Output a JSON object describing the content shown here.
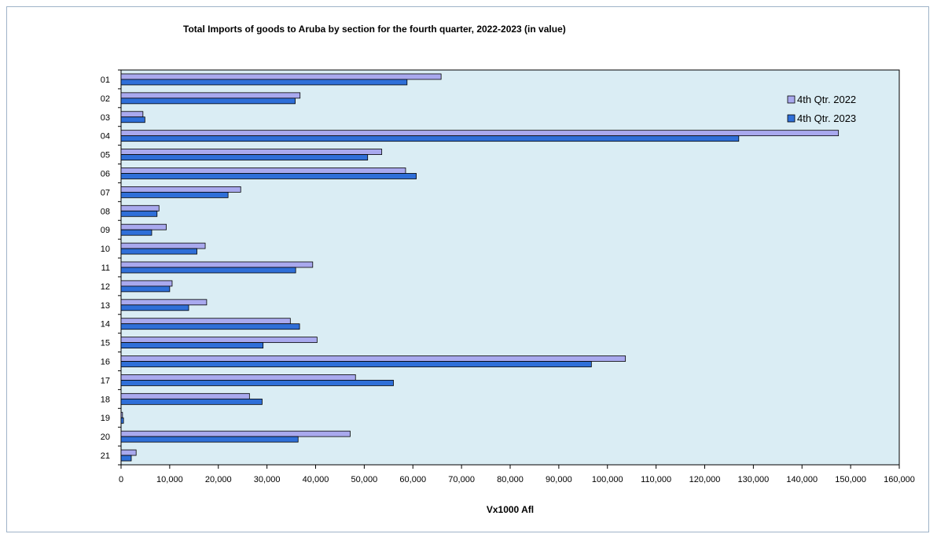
{
  "chart_data": {
    "type": "bar",
    "orientation": "horizontal",
    "title": "Total Imports of goods to Aruba by section for the fourth quarter, 2022-2023 (in value)",
    "xlabel": "Vx1000 Afl",
    "ylabel": "",
    "xlim": [
      0,
      160000
    ],
    "x_ticks": [
      "0",
      "10,000",
      "20,000",
      "30,000",
      "40,000",
      "50,000",
      "60,000",
      "70,000",
      "80,000",
      "90,000",
      "100,000",
      "110,000",
      "120,000",
      "130,000",
      "140,000",
      "150,000",
      "160,000"
    ],
    "categories": [
      "01",
      "02",
      "03",
      "04",
      "05",
      "06",
      "07",
      "08",
      "09",
      "10",
      "11",
      "12",
      "13",
      "14",
      "15",
      "16",
      "17",
      "18",
      "19",
      "20",
      "21"
    ],
    "series": [
      {
        "name": "4th Qtr. 2022",
        "color": "#a9a9ee",
        "values": [
          65800,
          36800,
          4500,
          147500,
          53600,
          58500,
          24600,
          7800,
          9300,
          17300,
          39400,
          10500,
          17600,
          34800,
          40300,
          103700,
          48200,
          26400,
          300,
          47100,
          3100
        ]
      },
      {
        "name": "4th Qtr. 2023",
        "color": "#2f6fd8",
        "values": [
          58800,
          35800,
          4900,
          127000,
          50700,
          60700,
          22000,
          7400,
          6300,
          15600,
          35900,
          10000,
          13900,
          36700,
          29200,
          96700,
          56000,
          29000,
          500,
          36400,
          2100
        ]
      }
    ],
    "grid": false,
    "plot_background": "#daedf4",
    "legend_position": "top-right"
  }
}
